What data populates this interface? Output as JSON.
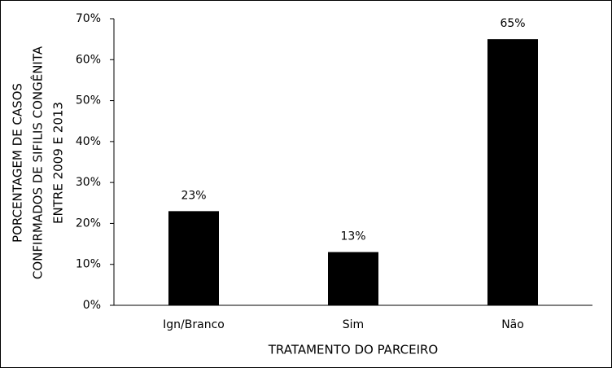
{
  "chart_data": {
    "type": "bar",
    "y_label": [
      "PORCENTAGEM DE CASOS",
      "CONFIRMADOS DE SIFILIS CONGÊNITA",
      "ENTRE 2009 E 2013"
    ],
    "x_label": "TRATAMENTO DO PARCEIRO",
    "categories": [
      "Ign/Branco",
      "Sim",
      "Não"
    ],
    "values": [
      23,
      13,
      65
    ],
    "value_labels": [
      "23%",
      "13%",
      "65%"
    ],
    "color": "#000000",
    "ylim": [
      0,
      70
    ],
    "yticks": [
      {
        "value": 0,
        "label": "0%"
      },
      {
        "value": 10,
        "label": "10%"
      },
      {
        "value": 20,
        "label": "20%"
      },
      {
        "value": 30,
        "label": "30%"
      },
      {
        "value": 40,
        "label": "40%"
      },
      {
        "value": 50,
        "label": "50%"
      },
      {
        "value": 60,
        "label": "60%"
      },
      {
        "value": 70,
        "label": "70%"
      }
    ],
    "grid": false
  }
}
